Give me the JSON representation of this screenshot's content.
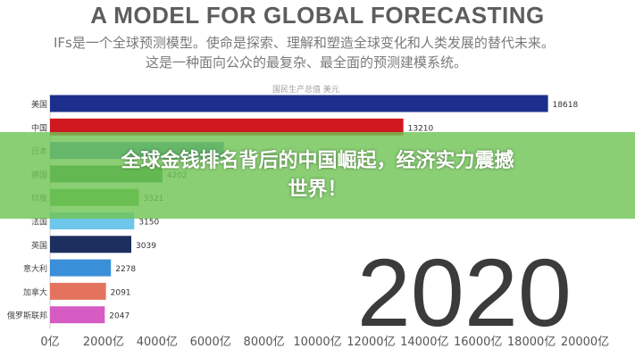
{
  "chart_data": {
    "type": "bar",
    "orientation": "horizontal",
    "title": "A MODEL FOR GLOBAL FORECASTING",
    "subtitle_lines": [
      "IFs是一个全球预测模型。使命是探索、理解和塑造全球变化和人类发展的替代未来。",
      "这是一种面向公众的最复杂、最全面的预测建模系统。"
    ],
    "unit_label": "国民生产总值     美元",
    "categories": [
      "美国",
      "中国",
      "日本",
      "德国",
      "印度",
      "法国",
      "英国",
      "意大利",
      "加拿大",
      "俄罗斯联邦"
    ],
    "values": [
      18618,
      13210,
      6500,
      4202,
      3321,
      3150,
      3039,
      2278,
      2091,
      2047
    ],
    "value_labels": [
      "18618",
      "13210",
      "",
      "4202",
      "3321",
      "3150",
      "3039",
      "2278",
      "2091",
      "2047"
    ],
    "colors": [
      "#1c2f8c",
      "#d01820",
      "#3a78c8",
      "#2f7f3f",
      "#4aa63f",
      "#6ec6ea",
      "#1d2f5f",
      "#3a8fd9",
      "#e4735e",
      "#d65cc4"
    ],
    "xaxis_ticks": [
      "0亿",
      "2000亿",
      "4000亿",
      "6000亿",
      "8000亿",
      "10000亿",
      "12000亿",
      "14000亿",
      "16000亿",
      "18000亿",
      "20000亿"
    ],
    "xlim": [
      0,
      20000
    ],
    "year_label": "2020",
    "grid": false,
    "legend": "none"
  },
  "banner": {
    "headline_line1": "全球金钱排名背后的中国崛起，经济实力震撼",
    "headline_line2": "世界！"
  }
}
